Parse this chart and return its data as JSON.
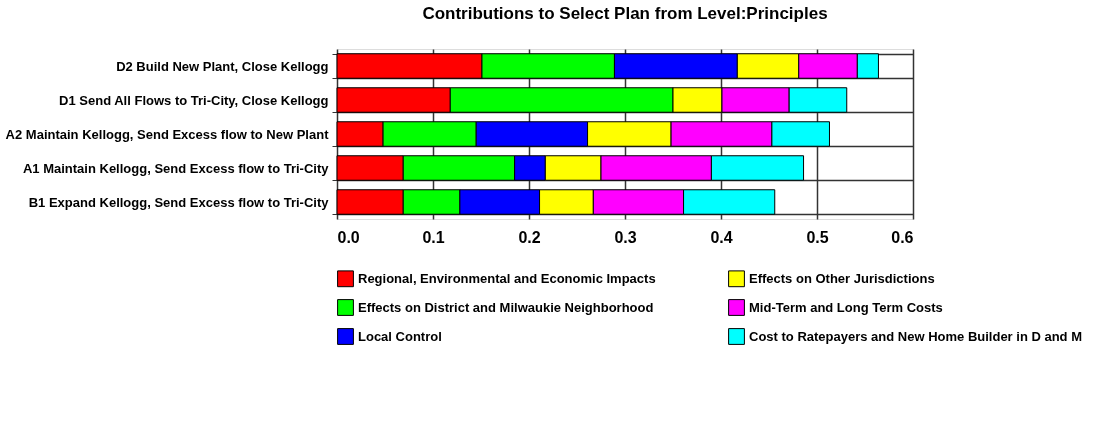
{
  "chart_data": {
    "type": "bar",
    "orientation": "horizontal",
    "stacked": true,
    "title": "Contributions to Select Plan from Level:Principles",
    "categories": [
      "D2 Build New Plant, Close Kellogg",
      "D1 Send All Flows to Tri-City, Close Kellogg",
      "A2 Maintain Kellogg, Send Excess flow to New Plant",
      "A1 Maintain Kellogg, Send Excess flow to Tri-City",
      "B1 Expand Kellogg, Send Excess flow to Tri-City"
    ],
    "series": [
      {
        "name": "Regional, Environmental and Economic Impacts",
        "color": "#ff0000",
        "values": [
          0.151,
          0.118,
          0.048,
          0.069,
          0.069
        ]
      },
      {
        "name": "Effects on District and Milwaukie Neighborhood",
        "color": "#00ff00",
        "values": [
          0.138,
          0.232,
          0.097,
          0.116,
          0.059
        ]
      },
      {
        "name": "Local Control",
        "color": "#0000ff",
        "values": [
          0.128,
          null,
          0.116,
          0.032,
          0.083
        ]
      },
      {
        "name": "Effects on Other Jurisdictions",
        "color": "#ffff00",
        "values": [
          0.064,
          0.051,
          0.087,
          0.058,
          0.056
        ]
      },
      {
        "name": "Mid-Term and Long Term Costs",
        "color": "#ff00ff",
        "values": [
          0.061,
          0.07,
          0.105,
          0.115,
          0.094
        ]
      },
      {
        "name": "Cost to Ratepayers and New Home Builder in D and M",
        "color": "#00ffff",
        "values": [
          0.022,
          0.06,
          0.06,
          0.096,
          0.095
        ]
      }
    ],
    "xlim": [
      0,
      0.6
    ],
    "xticks": [
      {
        "value": 0,
        "label": "0.0"
      },
      0.1,
      0.2,
      0.3,
      0.4,
      0.5,
      0.6
    ],
    "grid": true,
    "legend": "bottom"
  }
}
